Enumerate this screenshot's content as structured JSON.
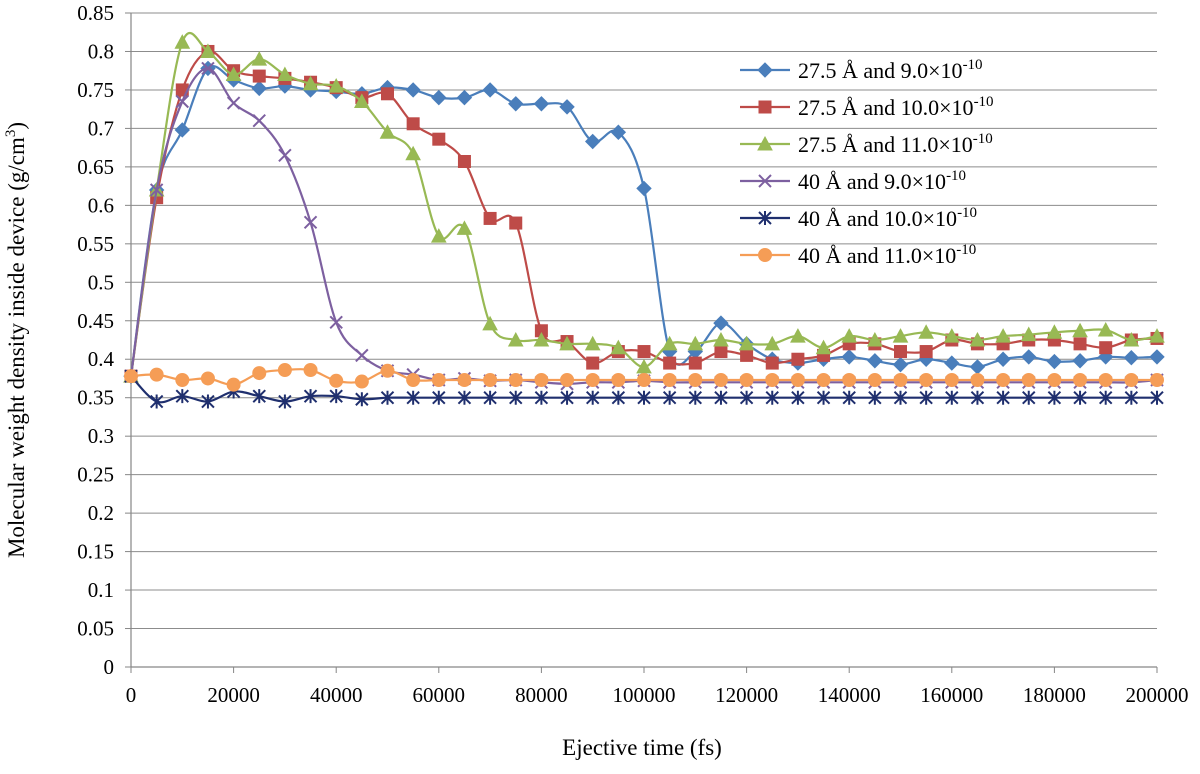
{
  "chart_data": {
    "type": "line",
    "title": "",
    "xlabel": "Ejective time (fs)",
    "ylabel": "Molecular weight density inside device (g/cm",
    "ylabel_sup": "3",
    "ylabel_end": ")",
    "xlim": [
      0,
      200000
    ],
    "ylim": [
      0,
      0.85
    ],
    "xticks": [
      "0",
      "20000",
      "40000",
      "60000",
      "80000",
      "100000",
      "120000",
      "140000",
      "160000",
      "180000",
      "200000"
    ],
    "yticks": [
      "0",
      "0.05",
      "0.1",
      "0.15",
      "0.2",
      "0.25",
      "0.3",
      "0.35",
      "0.4",
      "0.45",
      "0.5",
      "0.55",
      "0.6",
      "0.65",
      "0.7",
      "0.75",
      "0.8",
      "0.85"
    ],
    "grid": "horizontal",
    "legend_position": "top-right",
    "x": [
      0,
      5000,
      10000,
      15000,
      20000,
      25000,
      30000,
      35000,
      40000,
      45000,
      50000,
      55000,
      60000,
      65000,
      70000,
      75000,
      80000,
      85000,
      90000,
      95000,
      100000,
      105000,
      110000,
      115000,
      120000,
      125000,
      130000,
      135000,
      140000,
      145000,
      150000,
      155000,
      160000,
      165000,
      170000,
      175000,
      180000,
      185000,
      190000,
      195000,
      200000
    ],
    "series": [
      {
        "label_main": "27.5 Å and 9.0×10",
        "label_sup": "-10",
        "color": "#4a7ebb",
        "marker": "diamond",
        "values": [
          0.378,
          0.62,
          0.698,
          0.778,
          0.763,
          0.752,
          0.755,
          0.75,
          0.748,
          0.745,
          0.753,
          0.75,
          0.74,
          0.74,
          0.75,
          0.732,
          0.732,
          0.728,
          0.683,
          0.695,
          0.622,
          0.41,
          0.41,
          0.447,
          0.42,
          0.4,
          0.395,
          0.4,
          0.403,
          0.398,
          0.393,
          0.4,
          0.395,
          0.39,
          0.4,
          0.403,
          0.397,
          0.398,
          0.403,
          0.402,
          0.403
        ]
      },
      {
        "label_main": "27.5 Å and 10.0×10",
        "label_sup": "-10",
        "color": "#be4b48",
        "marker": "square",
        "values": [
          0.378,
          0.61,
          0.75,
          0.8,
          0.775,
          0.768,
          0.765,
          0.76,
          0.753,
          0.74,
          0.745,
          0.706,
          0.686,
          0.657,
          0.583,
          0.577,
          0.437,
          0.423,
          0.395,
          0.41,
          0.41,
          0.395,
          0.395,
          0.41,
          0.405,
          0.395,
          0.4,
          0.405,
          0.42,
          0.42,
          0.41,
          0.41,
          0.425,
          0.42,
          0.42,
          0.425,
          0.425,
          0.42,
          0.415,
          0.425,
          0.427
        ]
      },
      {
        "label_main": "27.5 Å and 11.0×10",
        "label_sup": "-10",
        "color": "#98b954",
        "marker": "triangle",
        "values": [
          0.378,
          0.62,
          0.812,
          0.8,
          0.77,
          0.79,
          0.77,
          0.758,
          0.755,
          0.735,
          0.695,
          0.667,
          0.56,
          0.57,
          0.446,
          0.425,
          0.425,
          0.42,
          0.42,
          0.415,
          0.39,
          0.42,
          0.42,
          0.425,
          0.42,
          0.42,
          0.43,
          0.415,
          0.43,
          0.425,
          0.43,
          0.435,
          0.43,
          0.425,
          0.43,
          0.432,
          0.435,
          0.437,
          0.438,
          0.425,
          0.43
        ]
      },
      {
        "label_main": "40 Å and 9.0×10",
        "label_sup": "-10",
        "color": "#7d60a0",
        "marker": "x",
        "values": [
          0.378,
          0.62,
          0.735,
          0.778,
          0.733,
          0.71,
          0.665,
          0.578,
          0.448,
          0.405,
          0.385,
          0.38,
          0.373,
          0.375,
          0.372,
          0.373,
          0.37,
          0.368,
          0.37,
          0.37,
          0.372,
          0.37,
          0.37,
          0.37,
          0.37,
          0.37,
          0.37,
          0.37,
          0.37,
          0.37,
          0.37,
          0.37,
          0.37,
          0.37,
          0.37,
          0.37,
          0.37,
          0.37,
          0.37,
          0.37,
          0.373
        ]
      },
      {
        "label_main": "40 Å and 10.0×10",
        "label_sup": "-10",
        "color": "#1f2f6e",
        "marker": "star",
        "values": [
          0.378,
          0.345,
          0.352,
          0.345,
          0.358,
          0.352,
          0.345,
          0.352,
          0.352,
          0.348,
          0.35,
          0.35,
          0.35,
          0.35,
          0.35,
          0.35,
          0.35,
          0.35,
          0.35,
          0.35,
          0.35,
          0.35,
          0.35,
          0.35,
          0.35,
          0.35,
          0.35,
          0.35,
          0.35,
          0.35,
          0.35,
          0.35,
          0.35,
          0.35,
          0.35,
          0.35,
          0.35,
          0.35,
          0.35,
          0.35,
          0.35
        ]
      },
      {
        "label_main": "40 Å and 11.0×10",
        "label_sup": "-10",
        "color": "#f59d56",
        "marker": "circle",
        "values": [
          0.378,
          0.38,
          0.373,
          0.375,
          0.367,
          0.382,
          0.386,
          0.386,
          0.372,
          0.371,
          0.385,
          0.373,
          0.373,
          0.373,
          0.373,
          0.373,
          0.373,
          0.373,
          0.373,
          0.373,
          0.373,
          0.373,
          0.373,
          0.373,
          0.373,
          0.373,
          0.373,
          0.373,
          0.373,
          0.373,
          0.373,
          0.373,
          0.373,
          0.373,
          0.373,
          0.373,
          0.373,
          0.373,
          0.373,
          0.373,
          0.373
        ]
      }
    ]
  }
}
